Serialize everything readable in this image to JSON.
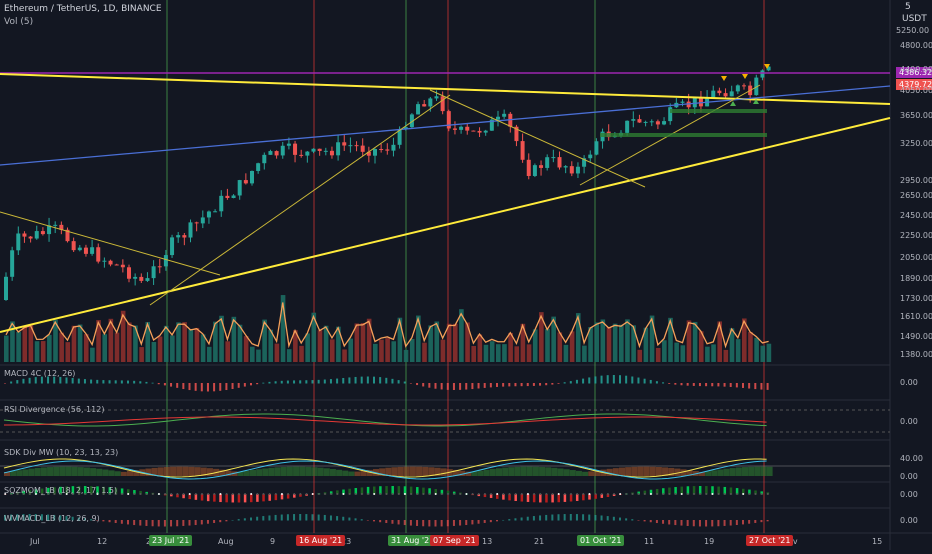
{
  "header": {
    "symbol": "Ethereum / TetherUS, 1D, BINANCE",
    "vol_label": "Vol (5)",
    "currency": "USDT",
    "scale_top": "5"
  },
  "colors": {
    "background": "#131722",
    "up": "#26a69a",
    "down": "#ef5350",
    "grid": "#1e222d",
    "trend_yellow": "#ffeb3b",
    "trend_blue": "#2962ff",
    "resistance_purple": "#9c27b0",
    "vol_ma": "#f5a05a",
    "vline_green": "#4caf50",
    "vline_red": "#e53935"
  },
  "price_axis": [
    "4800.00",
    "4400.00",
    "4050.00",
    "3650.00",
    "3250.00",
    "2950.00",
    "2650.00",
    "2450.00",
    "2250.00",
    "2050.00",
    "1890.00",
    "1730.00",
    "1610.00",
    "1490.00",
    "1380.00"
  ],
  "price_badges": {
    "upper": "4386.32",
    "lower": "4379.72"
  },
  "top_axis_label": "5250.00",
  "date_axis": [
    "Jul",
    "12",
    "2",
    "Aug",
    "9",
    "23",
    "13",
    "21",
    "11",
    "19",
    "Nov",
    "15"
  ],
  "date_badges": [
    {
      "label": "23 Jul '21",
      "kind": "green"
    },
    {
      "label": "16 Aug '21",
      "kind": "red"
    },
    {
      "label": "31 Aug '21",
      "kind": "green"
    },
    {
      "label": "07 Sep '21",
      "kind": "red"
    },
    {
      "label": "01 Oct '21",
      "kind": "green"
    },
    {
      "label": "27 Oct '21",
      "kind": "red"
    }
  ],
  "panes": {
    "macd": {
      "label": "MACD 4C (12, 26)",
      "value": "0.00"
    },
    "rsi": {
      "label": "RSI Divergence (56, 112)",
      "value": "0.00"
    },
    "sdk": {
      "label": "SDK Div MW (10, 23, 13, 23)",
      "values": [
        "40.00",
        "0.00"
      ]
    },
    "sqz": {
      "label": "SQZMOM_LB (18, 2, 17, 1.5)",
      "value": "0.00"
    },
    "wvf": {
      "label": "WVMACD_LB (12, 26, 9)",
      "value": "0.00"
    }
  },
  "chart_data": {
    "type": "candlestick",
    "title": "Ethereum / TetherUS, 1D, BINANCE",
    "ylabel": "USDT",
    "ylim": [
      1380,
      4800
    ],
    "markers": {
      "vertical_lines": [
        "23 Jul '21",
        "16 Aug '21",
        "31 Aug '21",
        "07 Sep '21",
        "01 Oct '21",
        "27 Oct '21"
      ]
    }
  }
}
